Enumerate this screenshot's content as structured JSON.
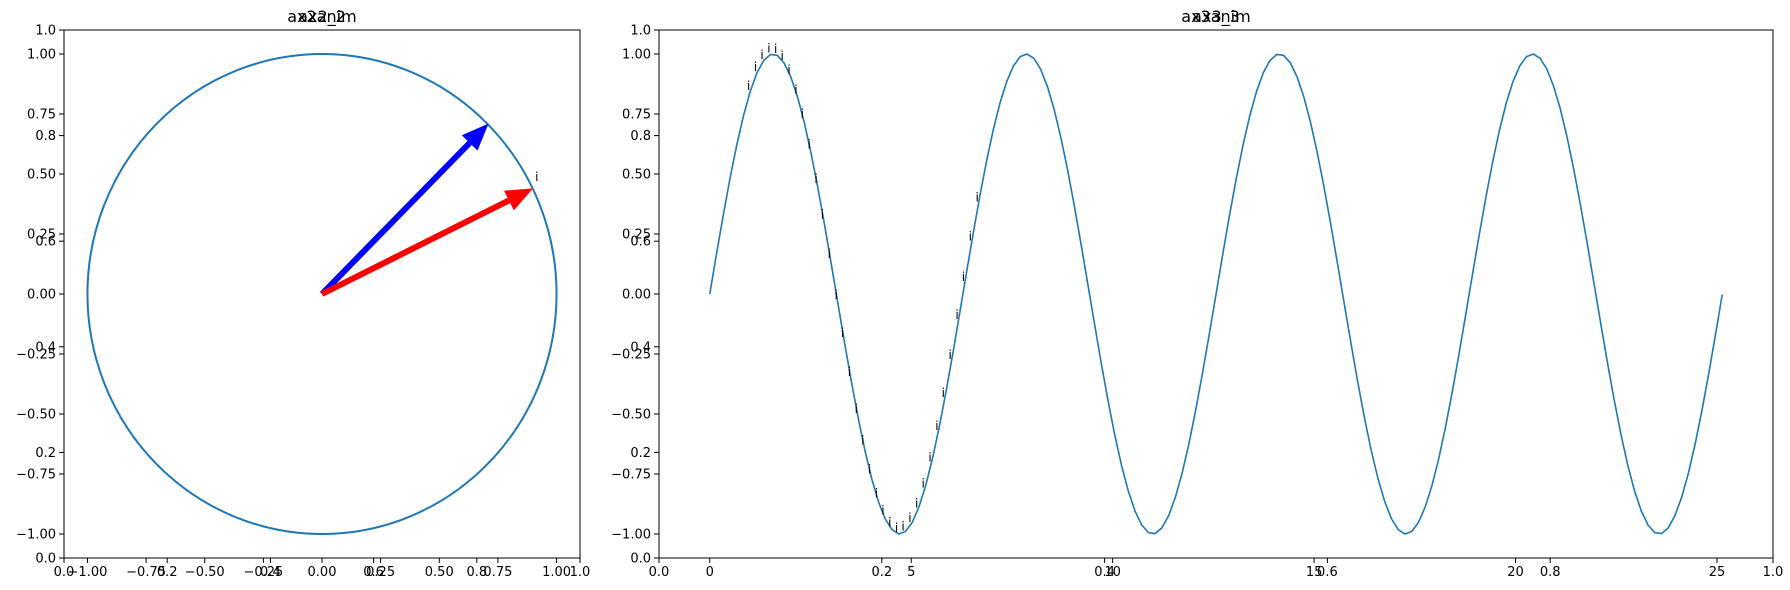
{
  "chart_data": [
    {
      "panel": "left",
      "type": "line",
      "titles": [
        "ax2_2",
        "ax2anim"
      ],
      "series": [
        {
          "kind": "circle",
          "center": [
            0,
            0
          ],
          "radius": 1,
          "color": "#1f77b4"
        }
      ],
      "arrows": [
        {
          "from": [
            0,
            0
          ],
          "to": [
            0.71,
            0.71
          ],
          "color": "#0000ff"
        },
        {
          "from": [
            0,
            0
          ],
          "to": [
            0.9,
            0.44
          ],
          "color": "#ff0000"
        }
      ],
      "point_annotations": [
        {
          "x": 0.9,
          "y": 0.47,
          "text": "i"
        }
      ],
      "xlim": [
        -1.1,
        1.1
      ],
      "ylim": [
        -1.1,
        1.1
      ],
      "xticks": [
        -1.0,
        -0.75,
        -0.5,
        -0.25,
        0.0,
        0.25,
        0.5,
        0.75,
        1.0
      ],
      "xtick_labels": [
        "−1.00",
        "−0.75",
        "−0.50",
        "−0.25",
        "0.00",
        "0.25",
        "0.50",
        "0.75",
        "1.00"
      ],
      "yticks": [
        -1.0,
        -0.75,
        -0.5,
        -0.25,
        0.0,
        0.25,
        0.5,
        0.75,
        1.0
      ],
      "ytick_labels": [
        "−1.00",
        "−0.75",
        "−0.50",
        "−0.25",
        "0.00",
        "0.25",
        "0.50",
        "0.75",
        "1.00"
      ],
      "overlay_xticks": [
        0.0,
        0.2,
        0.4,
        0.6,
        0.8,
        1.0
      ],
      "overlay_xtick_labels": [
        "0.0",
        "0.2",
        "0.4",
        "0.6",
        "0.8",
        "1.0"
      ],
      "overlay_yticks": [
        0.0,
        0.2,
        0.4,
        0.6,
        0.8,
        1.0
      ],
      "overlay_ytick_labels": [
        "0.0",
        "0.2",
        "0.4",
        "0.6",
        "0.8",
        "1.0"
      ]
    },
    {
      "panel": "right",
      "type": "line",
      "titles": [
        "ax3_3",
        "ax3anim"
      ],
      "series": [
        {
          "kind": "sine",
          "x_start": 0,
          "x_end": 25.13,
          "y": "sin(x)",
          "color": "#1f77b4"
        }
      ],
      "point_annotations": {
        "text": "i",
        "x": [
          1.0,
          1.17,
          1.33,
          1.5,
          1.67,
          1.83,
          2.0,
          2.17,
          2.33,
          2.5,
          2.67,
          2.83,
          3.0,
          3.17,
          3.33,
          3.5,
          3.67,
          3.83,
          4.0,
          4.17,
          4.33,
          4.5,
          4.67,
          4.83,
          5.0,
          5.17,
          5.33,
          5.5,
          5.67,
          5.83,
          6.0,
          6.17,
          6.33,
          6.5,
          6.67
        ]
      },
      "xlim": [
        -1.26,
        26.39
      ],
      "ylim": [
        -1.1,
        1.1
      ],
      "xticks": [
        0,
        5,
        10,
        15,
        20,
        25
      ],
      "xtick_labels": [
        "0",
        "5",
        "10",
        "15",
        "20",
        "25"
      ],
      "yticks": [
        -1.0,
        -0.75,
        -0.5,
        -0.25,
        0.0,
        0.25,
        0.5,
        0.75,
        1.0
      ],
      "ytick_labels": [
        "−1.00",
        "−0.75",
        "−0.50",
        "−0.25",
        "0.00",
        "0.25",
        "0.50",
        "0.75",
        "1.00"
      ],
      "overlay_xticks": [
        0.0,
        0.2,
        0.4,
        0.6,
        0.8,
        1.0
      ],
      "overlay_xtick_labels": [
        "0.0",
        "0.2",
        "0.4",
        "0.6",
        "0.8",
        "1.0"
      ],
      "overlay_yticks": [
        0.0,
        0.2,
        0.4,
        0.6,
        0.8,
        1.0
      ],
      "overlay_ytick_labels": [
        "0.0",
        "0.2",
        "0.4",
        "0.6",
        "0.8",
        "1.0"
      ]
    }
  ]
}
